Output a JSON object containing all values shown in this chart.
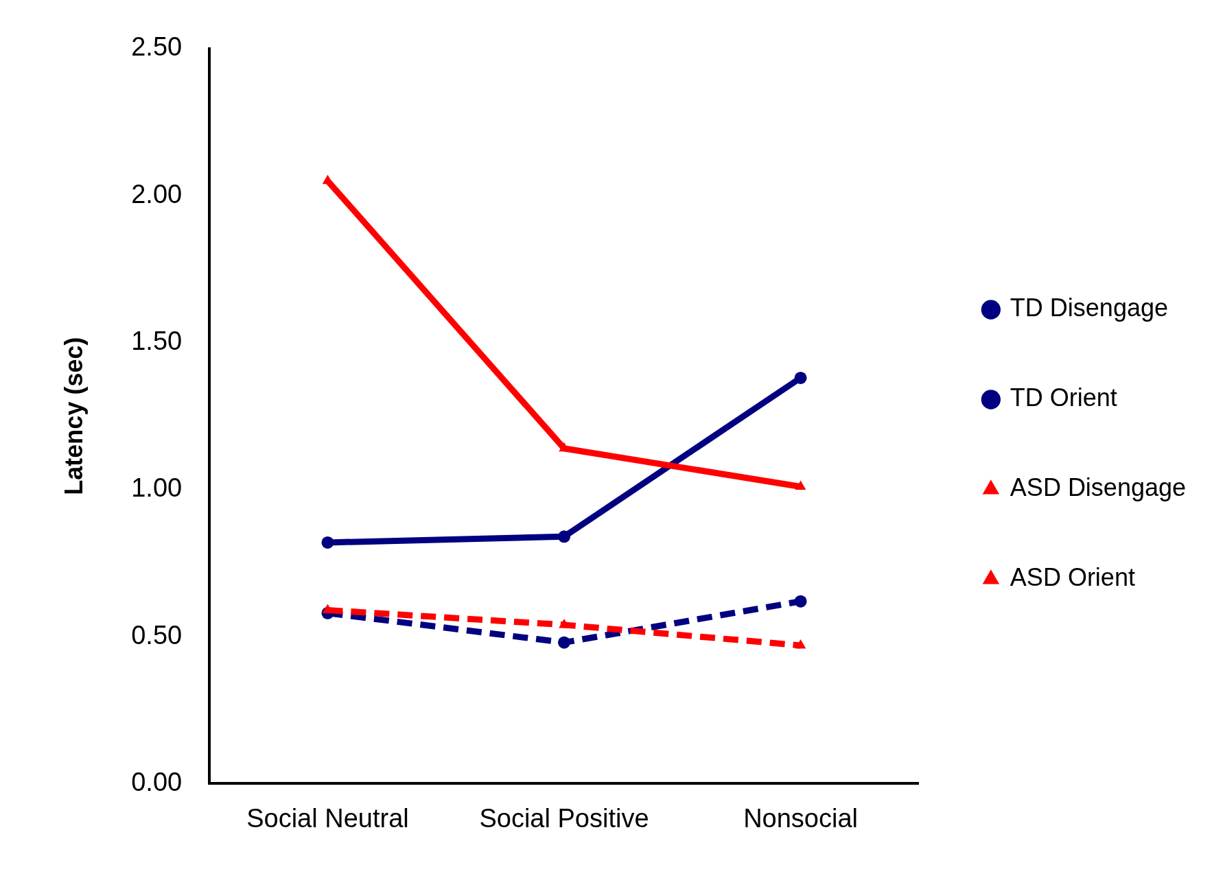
{
  "chart_data": {
    "type": "line",
    "ylabel": "Latency (sec)",
    "categories": [
      "Social Neutral",
      "Social Positive",
      "Nonsocial"
    ],
    "ylim": [
      0,
      2.5
    ],
    "yticks": [
      {
        "value": 0,
        "label": "0.00"
      },
      {
        "value": 0.5,
        "label": "0.50"
      },
      {
        "value": 1,
        "label": "1.00"
      },
      {
        "value": 1.5,
        "label": "1.50"
      },
      {
        "value": 2,
        "label": "2.00"
      },
      {
        "value": 2.5,
        "label": "2.50"
      }
    ],
    "grid": false,
    "legend": "right",
    "series": [
      {
        "name": "TD Disengage",
        "color": "#000080",
        "values": [
          0.82,
          0.84,
          1.38
        ],
        "marker": "circle",
        "line_style": "solid"
      },
      {
        "name": "TD Orient",
        "color": "#000080",
        "values": [
          0.58,
          0.48,
          0.62
        ],
        "marker": "circle",
        "line_style": "dashed"
      },
      {
        "name": "ASD Disengage",
        "color": "#ff0000",
        "values": [
          2.05,
          1.14,
          1.01
        ],
        "marker": "triangle",
        "line_style": "solid"
      },
      {
        "name": "ASD Orient",
        "color": "#ff0000",
        "values": [
          0.59,
          0.54,
          0.47
        ],
        "marker": "triangle",
        "line_style": "dashed"
      }
    ]
  }
}
